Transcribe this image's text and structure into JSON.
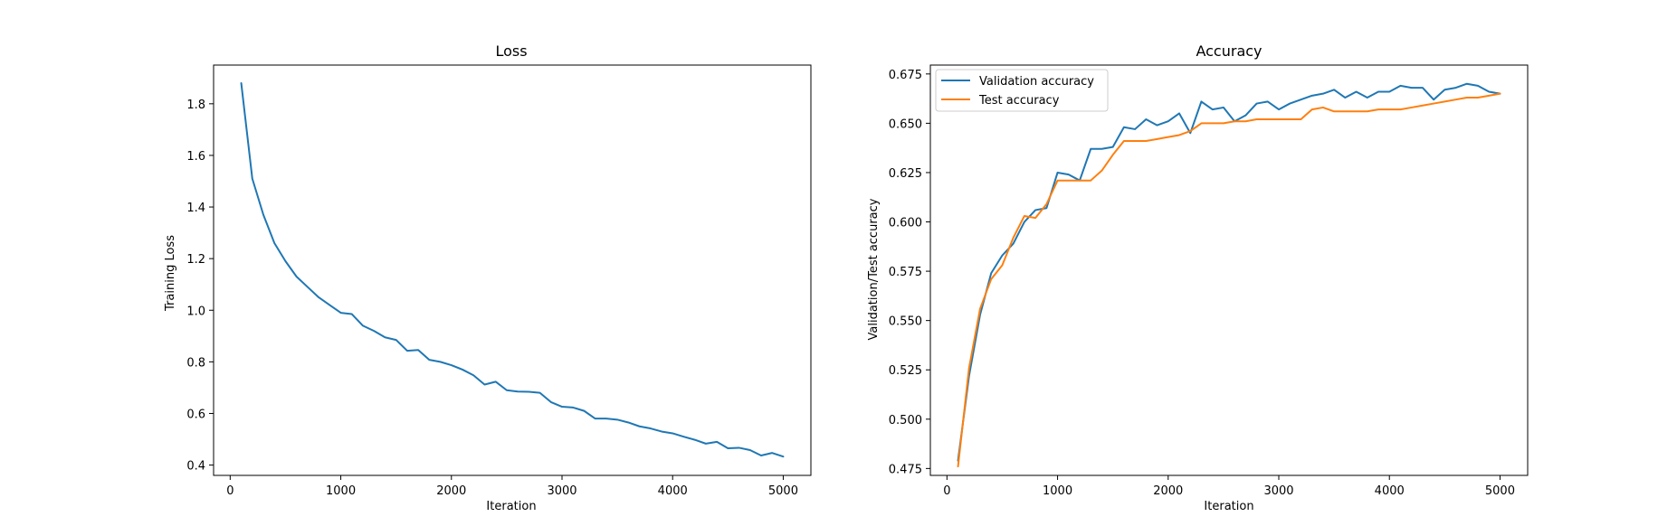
{
  "colors": {
    "series_blue": "#1f77b4",
    "series_orange": "#ff7f0e"
  },
  "chart_data": [
    {
      "type": "line",
      "title": "Loss",
      "xlabel": "Iteration",
      "ylabel": "Training Loss",
      "xlim": [
        -150,
        5250
      ],
      "ylim": [
        0.36,
        1.95
      ],
      "xticks": [
        0,
        1000,
        2000,
        3000,
        4000,
        5000
      ],
      "yticks": [
        0.4,
        0.6,
        0.8,
        1.0,
        1.2,
        1.4,
        1.6,
        1.8
      ],
      "ytick_decimals": 1,
      "grid": false,
      "series": [
        {
          "color": "#1f77b4",
          "x": [
            100,
            200,
            300,
            400,
            500,
            600,
            700,
            800,
            900,
            1000,
            1100,
            1200,
            1300,
            1400,
            1500,
            1600,
            1700,
            1800,
            1900,
            2000,
            2100,
            2200,
            2300,
            2400,
            2500,
            2600,
            2700,
            2800,
            2900,
            3000,
            3100,
            3200,
            3300,
            3400,
            3500,
            3600,
            3700,
            3800,
            3900,
            4000,
            4100,
            4200,
            4300,
            4400,
            4500,
            4600,
            4700,
            4800,
            4900,
            5000
          ],
          "y": [
            1.88,
            1.51,
            1.37,
            1.26,
            1.19,
            1.13,
            1.09,
            1.05,
            1.02,
            0.99,
            0.985,
            0.94,
            0.92,
            0.895,
            0.885,
            0.843,
            0.846,
            0.808,
            0.8,
            0.787,
            0.77,
            0.748,
            0.712,
            0.723,
            0.69,
            0.685,
            0.684,
            0.68,
            0.644,
            0.626,
            0.623,
            0.61,
            0.58,
            0.58,
            0.576,
            0.565,
            0.55,
            0.542,
            0.53,
            0.523,
            0.51,
            0.498,
            0.483,
            0.49,
            0.465,
            0.467,
            0.458,
            0.437,
            0.447,
            0.433
          ]
        }
      ]
    },
    {
      "type": "line",
      "title": "Accuracy",
      "xlabel": "Iteration",
      "ylabel": "Validation/Test accuracy",
      "xlim": [
        -150,
        5250
      ],
      "ylim": [
        0.4715,
        0.6795
      ],
      "xticks": [
        0,
        1000,
        2000,
        3000,
        4000,
        5000
      ],
      "yticks": [
        0.475,
        0.5,
        0.525,
        0.55,
        0.575,
        0.6,
        0.625,
        0.65,
        0.675
      ],
      "ytick_decimals": 3,
      "grid": false,
      "legend": "top-left",
      "series": [
        {
          "name": "Validation accuracy",
          "color": "#1f77b4",
          "x": [
            100,
            200,
            300,
            400,
            500,
            600,
            700,
            800,
            900,
            1000,
            1100,
            1200,
            1300,
            1400,
            1500,
            1600,
            1700,
            1800,
            1900,
            2000,
            2100,
            2200,
            2300,
            2400,
            2500,
            2600,
            2700,
            2800,
            2900,
            3000,
            3100,
            3200,
            3300,
            3400,
            3500,
            3600,
            3700,
            3800,
            3900,
            4000,
            4100,
            4200,
            4300,
            4400,
            4500,
            4600,
            4700,
            4800,
            4900,
            5000
          ],
          "y": [
            0.479,
            0.522,
            0.553,
            0.574,
            0.583,
            0.589,
            0.6,
            0.606,
            0.607,
            0.625,
            0.624,
            0.621,
            0.637,
            0.637,
            0.638,
            0.648,
            0.647,
            0.652,
            0.649,
            0.651,
            0.655,
            0.645,
            0.661,
            0.657,
            0.658,
            0.651,
            0.654,
            0.66,
            0.661,
            0.657,
            0.66,
            0.662,
            0.664,
            0.665,
            0.667,
            0.663,
            0.666,
            0.663,
            0.666,
            0.666,
            0.669,
            0.668,
            0.668,
            0.662,
            0.667,
            0.668,
            0.67,
            0.669,
            0.666,
            0.665
          ]
        },
        {
          "name": "Test accuracy",
          "color": "#ff7f0e",
          "x": [
            100,
            200,
            300,
            400,
            500,
            600,
            700,
            800,
            900,
            1000,
            1100,
            1200,
            1300,
            1400,
            1500,
            1600,
            1700,
            1800,
            1900,
            2000,
            2100,
            2200,
            2300,
            2400,
            2500,
            2600,
            2700,
            2800,
            2900,
            3000,
            3100,
            3200,
            3300,
            3400,
            3500,
            3600,
            3700,
            3800,
            3900,
            4000,
            4100,
            4200,
            4300,
            4400,
            4500,
            4600,
            4700,
            4800,
            4900,
            5000
          ],
          "y": [
            0.476,
            0.526,
            0.556,
            0.571,
            0.578,
            0.592,
            0.603,
            0.602,
            0.609,
            0.621,
            0.621,
            0.621,
            0.621,
            0.626,
            0.634,
            0.641,
            0.641,
            0.641,
            0.642,
            0.643,
            0.644,
            0.646,
            0.65,
            0.65,
            0.65,
            0.651,
            0.651,
            0.652,
            0.652,
            0.652,
            0.652,
            0.652,
            0.657,
            0.658,
            0.656,
            0.656,
            0.656,
            0.656,
            0.657,
            0.657,
            0.657,
            0.658,
            0.659,
            0.66,
            0.661,
            0.662,
            0.663,
            0.663,
            0.664,
            0.665
          ]
        }
      ]
    }
  ]
}
